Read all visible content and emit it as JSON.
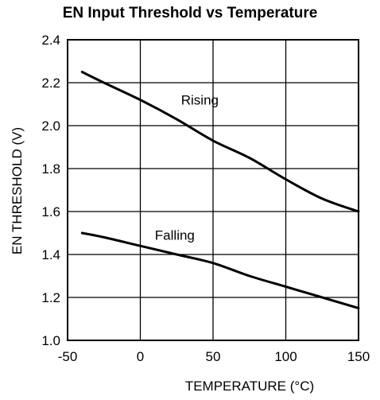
{
  "chart_data": {
    "type": "line",
    "title": "EN Input Threshold vs Temperature",
    "xlabel": "TEMPERATURE (°C)",
    "ylabel": "EN THRESHOLD (V)",
    "xlim": [
      -50,
      150
    ],
    "ylim": [
      1.0,
      2.4
    ],
    "xticks": [
      -50,
      0,
      50,
      100,
      150
    ],
    "yticks": [
      1.0,
      1.2,
      1.4,
      1.6,
      1.8,
      2.0,
      2.2,
      2.4
    ],
    "xtick_labels": [
      "-50",
      "0",
      "50",
      "100",
      "150"
    ],
    "ytick_labels": [
      "1.0",
      "1.2",
      "1.4",
      "1.6",
      "1.8",
      "2.0",
      "2.2",
      "2.4"
    ],
    "grid": true,
    "legend": "none",
    "series": [
      {
        "name": "Rising",
        "x": [
          -40,
          -25,
          0,
          25,
          50,
          75,
          100,
          125,
          150
        ],
        "y": [
          2.25,
          2.2,
          2.12,
          2.03,
          1.93,
          1.85,
          1.75,
          1.66,
          1.6
        ]
      },
      {
        "name": "Falling",
        "x": [
          -40,
          -25,
          0,
          25,
          50,
          75,
          100,
          125,
          150
        ],
        "y": [
          1.5,
          1.48,
          1.44,
          1.4,
          1.36,
          1.3,
          1.25,
          1.2,
          1.15
        ]
      }
    ],
    "colors": {
      "line": "#000000",
      "grid": "#000000",
      "background": "#ffffff"
    }
  }
}
